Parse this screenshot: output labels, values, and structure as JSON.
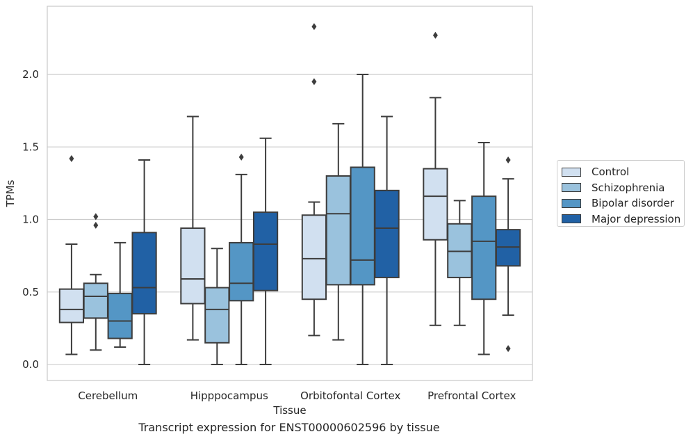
{
  "caption": "Transcript expression for ENST00000602596 by tissue",
  "chart_data": {
    "type": "box",
    "xlabel": "Tissue",
    "ylabel": "TPMs",
    "ylim": [
      -0.11,
      2.47
    ],
    "yticks": [
      0.0,
      0.5,
      1.0,
      1.5,
      2.0
    ],
    "ytick_labels": [
      "0.0",
      "0.5",
      "1.0",
      "1.5",
      "2.0"
    ],
    "categories": [
      "Cerebellum",
      "Hipppocampus",
      "Orbitofontal Cortex",
      "Prefrontal Cortex"
    ],
    "grid": "horizontal",
    "legend_position": "right",
    "series": [
      {
        "name": "Control",
        "color": "#d1e0f0",
        "boxes": [
          {
            "whislo": 0.07,
            "q1": 0.29,
            "med": 0.38,
            "q3": 0.52,
            "whishi": 0.83,
            "fliers": [
              1.42
            ]
          },
          {
            "whislo": 0.17,
            "q1": 0.42,
            "med": 0.59,
            "q3": 0.94,
            "whishi": 1.71,
            "fliers": []
          },
          {
            "whislo": 0.2,
            "q1": 0.45,
            "med": 0.73,
            "q3": 1.03,
            "whishi": 1.12,
            "fliers": [
              1.95,
              2.33
            ]
          },
          {
            "whislo": 0.27,
            "q1": 0.86,
            "med": 1.16,
            "q3": 1.35,
            "whishi": 1.84,
            "fliers": [
              2.27
            ]
          }
        ]
      },
      {
        "name": "Schizophrenia",
        "color": "#9ac2dd",
        "boxes": [
          {
            "whislo": 0.1,
            "q1": 0.32,
            "med": 0.47,
            "q3": 0.56,
            "whishi": 0.62,
            "fliers": [
              0.96,
              1.02
            ]
          },
          {
            "whislo": 0.0,
            "q1": 0.15,
            "med": 0.38,
            "q3": 0.53,
            "whishi": 0.8,
            "fliers": []
          },
          {
            "whislo": 0.17,
            "q1": 0.55,
            "med": 1.04,
            "q3": 1.3,
            "whishi": 1.66,
            "fliers": []
          },
          {
            "whislo": 0.27,
            "q1": 0.6,
            "med": 0.78,
            "q3": 0.97,
            "whishi": 1.13,
            "fliers": []
          }
        ]
      },
      {
        "name": "Bipolar disorder",
        "color": "#5496c5",
        "boxes": [
          {
            "whislo": 0.12,
            "q1": 0.18,
            "med": 0.3,
            "q3": 0.49,
            "whishi": 0.84,
            "fliers": []
          },
          {
            "whislo": 0.0,
            "q1": 0.44,
            "med": 0.56,
            "q3": 0.84,
            "whishi": 1.31,
            "fliers": [
              1.43
            ]
          },
          {
            "whislo": 0.0,
            "q1": 0.55,
            "med": 0.72,
            "q3": 1.36,
            "whishi": 2.0,
            "fliers": []
          },
          {
            "whislo": 0.07,
            "q1": 0.45,
            "med": 0.85,
            "q3": 1.16,
            "whishi": 1.53,
            "fliers": []
          }
        ]
      },
      {
        "name": "Major depression",
        "color": "#2161a5",
        "boxes": [
          {
            "whislo": 0.0,
            "q1": 0.35,
            "med": 0.53,
            "q3": 0.91,
            "whishi": 1.41,
            "fliers": []
          },
          {
            "whislo": 0.0,
            "q1": 0.51,
            "med": 0.83,
            "q3": 1.05,
            "whishi": 1.56,
            "fliers": []
          },
          {
            "whislo": 0.0,
            "q1": 0.6,
            "med": 0.94,
            "q3": 1.2,
            "whishi": 1.71,
            "fliers": []
          },
          {
            "whislo": 0.34,
            "q1": 0.68,
            "med": 0.81,
            "q3": 0.93,
            "whishi": 1.28,
            "fliers": [
              0.11,
              1.41
            ]
          }
        ]
      }
    ]
  }
}
